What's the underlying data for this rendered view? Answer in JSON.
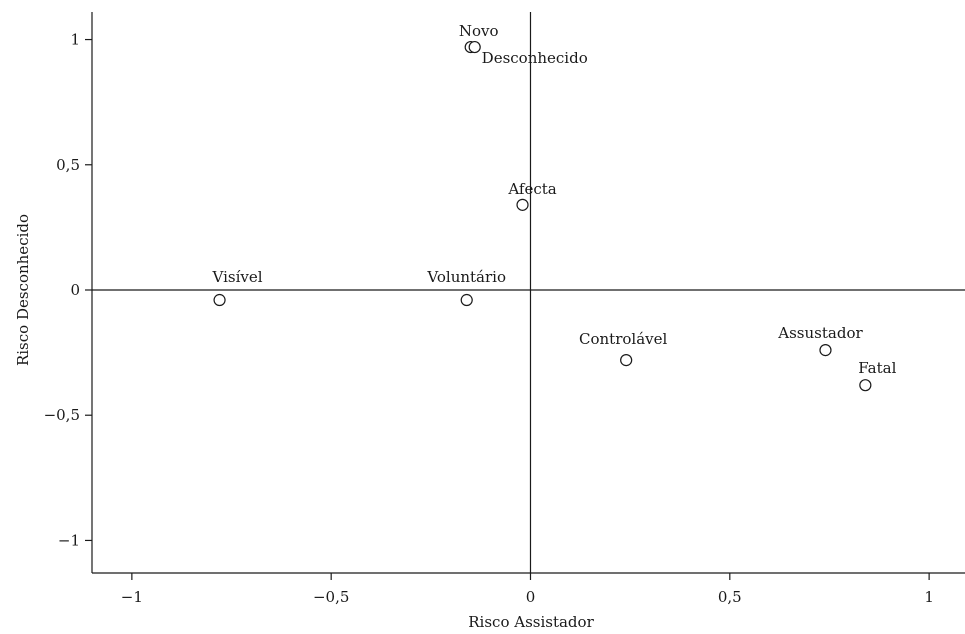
{
  "chart_data": {
    "type": "scatter",
    "title": "",
    "xlabel": "Risco Assistador",
    "ylabel": "Risco Desconhecido",
    "xlim": [
      -1.1,
      1.09
    ],
    "ylim": [
      -1.13,
      1.11
    ],
    "x_ticks": [
      -1,
      -0.5,
      0,
      0.5,
      1
    ],
    "x_tick_labels": [
      "−1",
      "−0,5",
      "0",
      "0,5",
      "1"
    ],
    "y_ticks": [
      1,
      0.5,
      0,
      -0.5,
      -1
    ],
    "y_tick_labels": [
      "1",
      "0,5",
      "0",
      "−0,5",
      "−1"
    ],
    "grid": false,
    "reference_lines": {
      "x": 0,
      "y": 0
    },
    "points": [
      {
        "label": "Novo",
        "x": -0.15,
        "y": 0.97
      },
      {
        "label": "Desconhecido",
        "x": -0.14,
        "y": 0.97
      },
      {
        "label": "Afecta",
        "x": -0.02,
        "y": 0.34
      },
      {
        "label": "Visível",
        "x": -0.78,
        "y": -0.04
      },
      {
        "label": "Voluntário",
        "x": -0.16,
        "y": -0.04
      },
      {
        "label": "Controlável",
        "x": 0.24,
        "y": -0.28
      },
      {
        "label": "Assustador",
        "x": 0.74,
        "y": -0.24
      },
      {
        "label": "Fatal",
        "x": 0.84,
        "y": -0.38
      }
    ]
  }
}
